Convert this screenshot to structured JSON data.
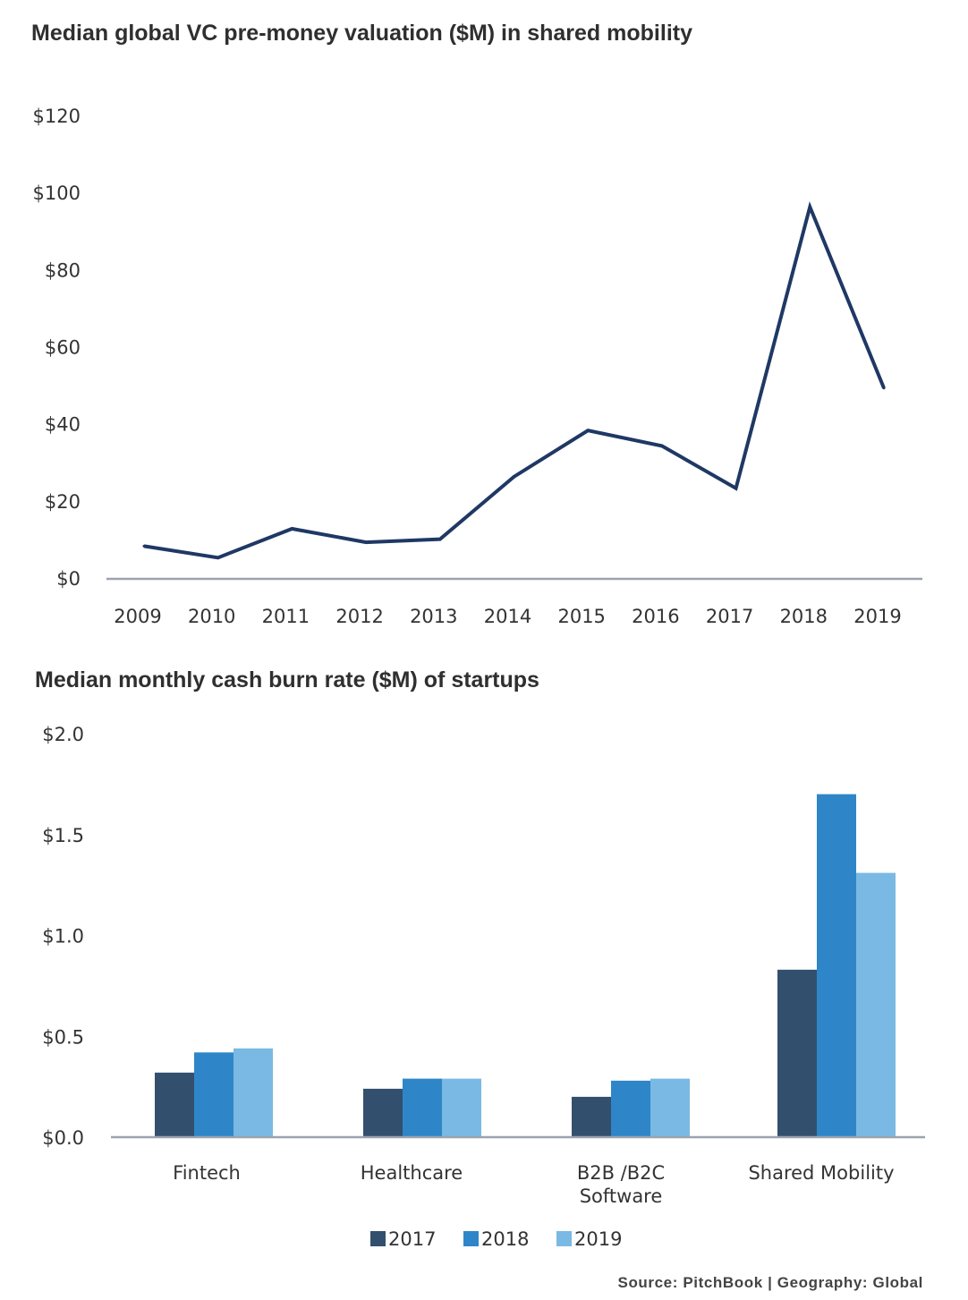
{
  "chart_data": [
    {
      "type": "line",
      "title": "Median global VC pre-money valuation ($M) in shared mobility",
      "x": [
        "2009",
        "2010",
        "2011",
        "2012",
        "2013",
        "2014",
        "2015",
        "2016",
        "2017",
        "2018",
        "2019"
      ],
      "series": [
        {
          "values": [
            8.5,
            5.5,
            13,
            9.5,
            10.3,
            26.5,
            38.5,
            34.5,
            23.5,
            96.5,
            49.5
          ]
        }
      ],
      "y_ticks": [
        "$0",
        "$20",
        "$40",
        "$60",
        "$80",
        "$100",
        "$120"
      ],
      "ylim": [
        0,
        120
      ],
      "xlabel": "",
      "ylabel": "",
      "grid": false,
      "line_color": "#1f3864"
    },
    {
      "type": "bar",
      "title": "Median monthly cash burn rate ($M) of startups",
      "categories": [
        "Fintech",
        "Healthcare",
        "B2B /B2C Software",
        "Shared Mobility"
      ],
      "category_lines": [
        [
          "Fintech"
        ],
        [
          "Healthcare"
        ],
        [
          "B2B /B2C",
          "Software"
        ],
        [
          "Shared Mobility"
        ]
      ],
      "series": [
        {
          "name": "2017",
          "color": "#334f6e",
          "values": [
            0.32,
            0.24,
            0.2,
            0.83
          ]
        },
        {
          "name": "2018",
          "color": "#2e86c8",
          "values": [
            0.42,
            0.29,
            0.28,
            1.7
          ]
        },
        {
          "name": "2019",
          "color": "#7ab9e3",
          "values": [
            0.44,
            0.29,
            0.29,
            1.31
          ]
        }
      ],
      "y_ticks": [
        "$0.0",
        "$0.5",
        "$1.0",
        "$1.5",
        "$2.0"
      ],
      "ylim": [
        0,
        2.0
      ],
      "xlabel": "",
      "ylabel": "",
      "grid": false,
      "legend": "bottom-center"
    }
  ],
  "footer": {
    "source": "Source: PitchBook | Geography: Global"
  }
}
